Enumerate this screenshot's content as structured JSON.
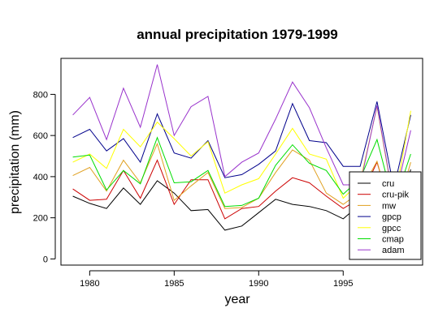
{
  "chart_data": {
    "type": "line",
    "title": "annual precipitation 1979-1999",
    "xlabel": "year",
    "ylabel": "precipitation (mm)",
    "x": [
      1979,
      1980,
      1981,
      1982,
      1983,
      1984,
      1985,
      1986,
      1987,
      1988,
      1989,
      1990,
      1991,
      1992,
      1993,
      1994,
      1995,
      1996,
      1997,
      1998,
      1999
    ],
    "xlim": [
      1978.3,
      1999.7
    ],
    "ylim": [
      -30,
      975
    ],
    "x_ticks": [
      1980,
      1985,
      1990,
      1995
    ],
    "y_ticks": [
      0,
      200,
      400,
      600,
      800
    ],
    "grid": false,
    "legend_position": "bottom-right",
    "series": [
      {
        "name": "cru",
        "color": "#000000",
        "values": [
          305,
          270,
          245,
          345,
          265,
          380,
          320,
          235,
          240,
          140,
          160,
          225,
          290,
          265,
          255,
          235,
          195,
          265,
          270,
          175,
          435
        ]
      },
      {
        "name": "cru-pik",
        "color": "#cc0000",
        "values": [
          340,
          285,
          290,
          430,
          295,
          480,
          265,
          385,
          385,
          195,
          245,
          255,
          330,
          395,
          370,
          305,
          245,
          295,
          470,
          195,
          420
        ]
      },
      {
        "name": "mw",
        "color": "#e0a020",
        "values": [
          405,
          445,
          330,
          480,
          370,
          560,
          285,
          355,
          420,
          245,
          250,
          295,
          420,
          530,
          480,
          320,
          265,
          325,
          475,
          185,
          470
        ]
      },
      {
        "name": "gpcp",
        "color": "#00008b",
        "values": [
          590,
          630,
          525,
          585,
          470,
          705,
          515,
          490,
          575,
          395,
          410,
          460,
          525,
          755,
          575,
          565,
          450,
          450,
          765,
          345,
          700
        ]
      },
      {
        "name": "gpcc",
        "color": "#ffff00",
        "values": [
          470,
          510,
          440,
          630,
          545,
          665,
          585,
          500,
          570,
          320,
          360,
          390,
          510,
          635,
          510,
          485,
          295,
          375,
          740,
          265,
          720
        ]
      },
      {
        "name": "cmap",
        "color": "#00dd00",
        "values": [
          495,
          505,
          335,
          430,
          365,
          590,
          370,
          375,
          430,
          255,
          260,
          295,
          455,
          555,
          465,
          430,
          315,
          390,
          580,
          265,
          510
        ]
      },
      {
        "name": "adam",
        "color": "#9933cc",
        "values": [
          700,
          785,
          580,
          830,
          640,
          945,
          600,
          740,
          790,
          400,
          470,
          515,
          680,
          860,
          735,
          540,
          360,
          360,
          745,
          275,
          625
        ]
      }
    ]
  }
}
